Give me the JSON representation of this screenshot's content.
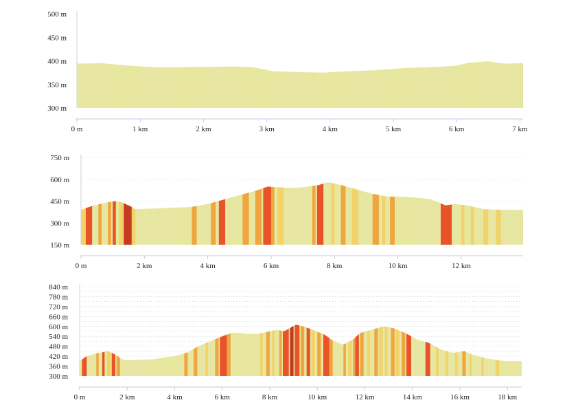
{
  "colors": {
    "flat": "#e6e59c",
    "light": "#f2d36a",
    "medium": "#f0a640",
    "steep": "#e8532a",
    "darkest": "#c43a22",
    "axis": "#c5cbe0"
  },
  "chart_data": [
    {
      "type": "area",
      "title": "",
      "xlabel": "",
      "ylabel": "",
      "xlim": [
        0,
        7.05
      ],
      "ylim": [
        300,
        500
      ],
      "y_ticks": [
        300,
        350,
        400,
        450,
        500
      ],
      "y_tick_labels": [
        "300 m",
        "350 m",
        "400 m",
        "450 m",
        "500 m"
      ],
      "x_ticks": [
        0,
        1,
        2,
        3,
        4,
        5,
        6,
        7
      ],
      "x_tick_labels": [
        "0 m",
        "1 km",
        "2 km",
        "3 km",
        "4 km",
        "5 km",
        "6 km",
        "7 km"
      ],
      "grid": false,
      "x": [
        0,
        0.4,
        0.8,
        1.3,
        2.0,
        2.5,
        2.8,
        3.1,
        3.5,
        3.9,
        4.3,
        4.7,
        5.2,
        5.7,
        6.0,
        6.2,
        6.5,
        6.75,
        7.05
      ],
      "y": [
        394,
        395,
        390,
        386,
        387,
        388,
        386,
        378,
        376,
        375,
        378,
        380,
        385,
        387,
        390,
        396,
        399,
        394,
        395
      ],
      "segments": [
        {
          "from": 0,
          "to": 7.05,
          "grade": "flat"
        }
      ]
    },
    {
      "type": "area",
      "title": "",
      "xlabel": "",
      "ylabel": "",
      "xlim": [
        0,
        13.95
      ],
      "ylim": [
        150,
        750
      ],
      "y_ticks": [
        150,
        300,
        450,
        600,
        750
      ],
      "y_tick_labels": [
        "150 m",
        "300 m",
        "450 m",
        "600 m",
        "750 m"
      ],
      "x_ticks": [
        0,
        2,
        4,
        6,
        8,
        10,
        12
      ],
      "x_tick_labels": [
        "0 m",
        "2 km",
        "4 km",
        "6 km",
        "8 km",
        "10 km",
        "12 km"
      ],
      "grid": true,
      "x": [
        0,
        0.4,
        0.8,
        1.1,
        1.3,
        1.6,
        1.7,
        2.5,
        3.5,
        4.0,
        4.5,
        5.0,
        5.5,
        5.9,
        6.2,
        6.6,
        7.0,
        7.5,
        7.8,
        8.2,
        8.7,
        9.2,
        9.7,
        10.0,
        10.5,
        11.0,
        11.3,
        11.5,
        11.8,
        12.2,
        12.7,
        13.2,
        13.95
      ],
      "y": [
        390,
        420,
        440,
        450,
        440,
        410,
        395,
        400,
        410,
        430,
        460,
        490,
        520,
        550,
        545,
        540,
        545,
        560,
        580,
        560,
        530,
        500,
        480,
        480,
        475,
        465,
        440,
        420,
        430,
        420,
        395,
        390,
        390
      ],
      "segments": [
        {
          "from": 0.0,
          "to": 0.15,
          "grade": "light"
        },
        {
          "from": 0.15,
          "to": 0.35,
          "grade": "steep"
        },
        {
          "from": 0.55,
          "to": 0.65,
          "grade": "medium"
        },
        {
          "from": 0.85,
          "to": 0.95,
          "grade": "medium"
        },
        {
          "from": 1.0,
          "to": 1.1,
          "grade": "steep"
        },
        {
          "from": 1.2,
          "to": 1.35,
          "grade": "light"
        },
        {
          "from": 1.35,
          "to": 1.6,
          "grade": "darkest"
        },
        {
          "from": 1.6,
          "to": 1.72,
          "grade": "light"
        },
        {
          "from": 3.5,
          "to": 3.65,
          "grade": "medium"
        },
        {
          "from": 4.1,
          "to": 4.25,
          "grade": "medium"
        },
        {
          "from": 4.35,
          "to": 4.55,
          "grade": "steep"
        },
        {
          "from": 5.1,
          "to": 5.3,
          "grade": "medium"
        },
        {
          "from": 5.5,
          "to": 5.7,
          "grade": "medium"
        },
        {
          "from": 5.75,
          "to": 6.0,
          "grade": "steep"
        },
        {
          "from": 6.0,
          "to": 6.1,
          "grade": "medium"
        },
        {
          "from": 6.2,
          "to": 6.4,
          "grade": "light"
        },
        {
          "from": 7.3,
          "to": 7.4,
          "grade": "medium"
        },
        {
          "from": 7.45,
          "to": 7.65,
          "grade": "steep"
        },
        {
          "from": 7.9,
          "to": 8.0,
          "grade": "light"
        },
        {
          "from": 8.2,
          "to": 8.35,
          "grade": "medium"
        },
        {
          "from": 8.55,
          "to": 8.75,
          "grade": "light"
        },
        {
          "from": 9.2,
          "to": 9.4,
          "grade": "medium"
        },
        {
          "from": 9.5,
          "to": 9.6,
          "grade": "light"
        },
        {
          "from": 9.75,
          "to": 9.9,
          "grade": "medium"
        },
        {
          "from": 11.35,
          "to": 11.7,
          "grade": "steep"
        },
        {
          "from": 12.0,
          "to": 12.1,
          "grade": "light"
        },
        {
          "from": 12.3,
          "to": 12.4,
          "grade": "light"
        },
        {
          "from": 12.7,
          "to": 12.85,
          "grade": "light"
        },
        {
          "from": 13.1,
          "to": 13.25,
          "grade": "light"
        }
      ]
    },
    {
      "type": "area",
      "title": "",
      "xlabel": "",
      "ylabel": "",
      "xlim": [
        0,
        18.6
      ],
      "ylim": [
        300,
        840
      ],
      "y_ticks": [
        300,
        360,
        420,
        480,
        540,
        600,
        660,
        720,
        780,
        840
      ],
      "y_tick_labels": [
        "300 m",
        "360 m",
        "420 m",
        "480 m",
        "540 m",
        "600 m",
        "660 m",
        "720 m",
        "780 m",
        "840 m"
      ],
      "intermediate_y_ticks": [
        330,
        390,
        450,
        510,
        570,
        630,
        690,
        750,
        810
      ],
      "x_ticks": [
        0,
        2,
        4,
        6,
        8,
        10,
        12,
        14,
        16,
        18
      ],
      "x_tick_labels": [
        "0 m",
        "2 km",
        "4 km",
        "6 km",
        "8 km",
        "10 km",
        "12 km",
        "14 km",
        "16 km",
        "18 km"
      ],
      "grid": true,
      "x": [
        0,
        0.3,
        0.8,
        1.2,
        1.5,
        1.8,
        2.0,
        3.0,
        4.0,
        4.5,
        5.0,
        5.5,
        6.0,
        6.4,
        6.7,
        7.0,
        7.5,
        8.0,
        8.3,
        8.6,
        9.1,
        9.4,
        9.8,
        10.3,
        10.7,
        11.1,
        11.5,
        11.8,
        12.3,
        12.8,
        13.2,
        13.7,
        14.2,
        14.7,
        15.2,
        15.7,
        16.2,
        16.5,
        17.0,
        17.6,
        18.0,
        18.6
      ],
      "y": [
        390,
        420,
        440,
        450,
        430,
        400,
        395,
        400,
        420,
        440,
        480,
        510,
        540,
        560,
        560,
        555,
        555,
        570,
        580,
        570,
        610,
        600,
        580,
        550,
        510,
        490,
        520,
        560,
        580,
        600,
        590,
        560,
        520,
        500,
        460,
        440,
        450,
        430,
        410,
        395,
        390,
        390
      ],
      "segments": [
        {
          "from": 0.1,
          "to": 0.3,
          "grade": "steep"
        },
        {
          "from": 0.7,
          "to": 0.8,
          "grade": "medium"
        },
        {
          "from": 0.95,
          "to": 1.05,
          "grade": "steep"
        },
        {
          "from": 1.15,
          "to": 1.3,
          "grade": "light"
        },
        {
          "from": 1.35,
          "to": 1.5,
          "grade": "steep"
        },
        {
          "from": 1.55,
          "to": 1.7,
          "grade": "medium"
        },
        {
          "from": 4.4,
          "to": 4.55,
          "grade": "medium"
        },
        {
          "from": 4.8,
          "to": 4.95,
          "grade": "medium"
        },
        {
          "from": 5.3,
          "to": 5.4,
          "grade": "light"
        },
        {
          "from": 5.7,
          "to": 5.85,
          "grade": "medium"
        },
        {
          "from": 5.9,
          "to": 6.2,
          "grade": "steep"
        },
        {
          "from": 6.2,
          "to": 6.35,
          "grade": "medium"
        },
        {
          "from": 7.6,
          "to": 7.7,
          "grade": "light"
        },
        {
          "from": 7.85,
          "to": 8.0,
          "grade": "medium"
        },
        {
          "from": 8.1,
          "to": 8.2,
          "grade": "light"
        },
        {
          "from": 8.4,
          "to": 8.5,
          "grade": "medium"
        },
        {
          "from": 8.55,
          "to": 8.8,
          "grade": "steep"
        },
        {
          "from": 8.85,
          "to": 9.0,
          "grade": "darkest"
        },
        {
          "from": 9.05,
          "to": 9.25,
          "grade": "steep"
        },
        {
          "from": 9.3,
          "to": 9.45,
          "grade": "medium"
        },
        {
          "from": 9.55,
          "to": 9.7,
          "grade": "steep"
        },
        {
          "from": 9.75,
          "to": 9.9,
          "grade": "light"
        },
        {
          "from": 10.0,
          "to": 10.15,
          "grade": "medium"
        },
        {
          "from": 10.25,
          "to": 10.5,
          "grade": "steep"
        },
        {
          "from": 10.5,
          "to": 10.65,
          "grade": "medium"
        },
        {
          "from": 11.1,
          "to": 11.2,
          "grade": "medium"
        },
        {
          "from": 11.3,
          "to": 11.45,
          "grade": "light"
        },
        {
          "from": 11.5,
          "to": 11.6,
          "grade": "medium"
        },
        {
          "from": 11.6,
          "to": 11.75,
          "grade": "steep"
        },
        {
          "from": 11.8,
          "to": 11.95,
          "grade": "medium"
        },
        {
          "from": 12.1,
          "to": 12.2,
          "grade": "light"
        },
        {
          "from": 12.4,
          "to": 12.55,
          "grade": "medium"
        },
        {
          "from": 12.6,
          "to": 12.75,
          "grade": "light"
        },
        {
          "from": 12.85,
          "to": 12.95,
          "grade": "light"
        },
        {
          "from": 13.1,
          "to": 13.25,
          "grade": "medium"
        },
        {
          "from": 13.3,
          "to": 13.45,
          "grade": "light"
        },
        {
          "from": 13.55,
          "to": 13.7,
          "grade": "medium"
        },
        {
          "from": 13.75,
          "to": 13.95,
          "grade": "steep"
        },
        {
          "from": 14.55,
          "to": 14.75,
          "grade": "steep"
        },
        {
          "from": 15.0,
          "to": 15.1,
          "grade": "light"
        },
        {
          "from": 15.4,
          "to": 15.5,
          "grade": "light"
        },
        {
          "from": 15.8,
          "to": 15.9,
          "grade": "light"
        },
        {
          "from": 16.1,
          "to": 16.25,
          "grade": "medium"
        },
        {
          "from": 16.4,
          "to": 16.5,
          "grade": "light"
        },
        {
          "from": 16.9,
          "to": 17.0,
          "grade": "light"
        },
        {
          "from": 17.5,
          "to": 17.65,
          "grade": "light"
        }
      ]
    }
  ]
}
